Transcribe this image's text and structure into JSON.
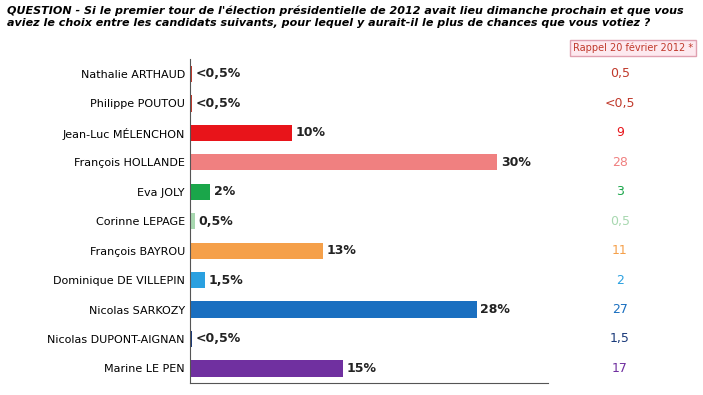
{
  "chart_data": {
    "type": "bar",
    "orientation": "horizontal",
    "title": "QUESTION - Si le premier tour de l'élection présidentielle de 2012 avait lieu dimanche prochain et que vous aviez le choix entre les candidats suivants, pour lequel y aurait-il le plus de chances que vous votiez ?",
    "categories": [
      "Nathalie ARTHAUD",
      "Philippe POUTOU",
      "Jean-Luc MÉLENCHON",
      "François HOLLANDE",
      "Eva JOLY",
      "Corinne LEPAGE",
      "François BAYROU",
      "Dominique DE VILLEPIN",
      "Nicolas SARKOZY",
      "Nicolas DUPONT-AIGNAN",
      "Marine LE PEN"
    ],
    "values": [
      0.25,
      0.25,
      10,
      30,
      2,
      0.5,
      13,
      1.5,
      28,
      0.25,
      15
    ],
    "value_labels": [
      "<0,5%",
      "<0,5%",
      "10%",
      "30%",
      "2%",
      "0,5%",
      "13%",
      "1,5%",
      "28%",
      "<0,5%",
      "15%"
    ],
    "colors": [
      "#c0392b",
      "#c0392b",
      "#e8141a",
      "#f08080",
      "#1aa64a",
      "#a8d8b0",
      "#f5a04a",
      "#2aa0e0",
      "#1a6fc0",
      "#1a3a7a",
      "#7030a0"
    ],
    "data_labels": true,
    "tick_labels": "y",
    "grid": false,
    "xlim": [
      0,
      35
    ],
    "xticks": [],
    "reference_column": {
      "title": "Rappel 20 février 2012 *",
      "values": [
        0.5,
        0.25,
        9,
        28,
        3,
        0.5,
        11,
        2,
        27,
        1.5,
        17
      ],
      "value_labels": [
        "0,5",
        "<0,5",
        "9",
        "28",
        "3",
        "0,5",
        "11",
        "2",
        "27",
        "1,5",
        "17"
      ]
    }
  }
}
